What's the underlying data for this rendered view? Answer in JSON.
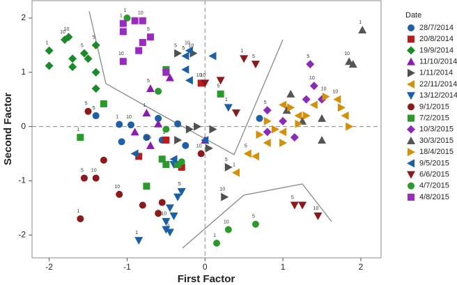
{
  "chart_data": {
    "type": "scatter",
    "x_label": "First Factor",
    "y_label": "Second Factor",
    "legend_title": "Date",
    "xlim": [
      -2.22,
      2.26
    ],
    "ylim": [
      -2.42,
      2.32
    ],
    "xticks": [
      -2,
      -1,
      0,
      1,
      2
    ],
    "yticks": [
      -2,
      -1,
      0,
      1,
      2
    ],
    "reference_lines": true,
    "legend_position": "right",
    "series": [
      {
        "name": "28/7/2014",
        "color": "#1f5fa8",
        "marker": "circle",
        "x": [
          -1.4,
          -1.1,
          -0.95,
          -1.07,
          -0.75,
          -0.55,
          -0.35,
          -0.25,
          0.7,
          -0.6
        ],
        "y": [
          0.2,
          0.04,
          0.03,
          -0.28,
          -0.2,
          -0.25,
          0.05,
          -0.35,
          0.15,
          0.15
        ],
        "labels": [
          "5",
          "1",
          "10",
          null,
          null,
          null,
          null,
          null,
          null,
          null
        ]
      },
      {
        "name": "20/8/2014",
        "color": "#b81c1c",
        "marker": "square",
        "x": [
          -0.5,
          -0.3,
          -0.05,
          -0.85
        ],
        "y": [
          -0.25,
          -0.75,
          0.8,
          -0.55
        ],
        "labels": [
          "1",
          null,
          "10",
          null
        ]
      },
      {
        "name": "19/9/2014",
        "color": "#1a8a2a",
        "marker": "diamond",
        "x": [
          -2.0,
          -2.0,
          -1.8,
          -1.75,
          -1.7,
          -1.7,
          -1.55,
          -1.5,
          -1.4,
          -1.4,
          -1.4
        ],
        "y": [
          1.4,
          1.12,
          1.6,
          1.65,
          1.25,
          1.1,
          1.35,
          1.25,
          1.5,
          1.0,
          0.7
        ],
        "labels": [
          "1",
          null,
          "10",
          "10",
          null,
          null,
          "5",
          null,
          "5",
          null,
          null
        ]
      },
      {
        "name": "11/10/2014",
        "color": "#8b1ab0",
        "marker": "tri-up",
        "x": [
          -0.7,
          -0.75,
          -0.6,
          -0.7,
          0.0,
          -0.9,
          -0.45
        ],
        "y": [
          0.7,
          0.25,
          0.05,
          -0.35,
          -0.25,
          -0.1,
          0.9
        ],
        "labels": [
          "5",
          "1",
          null,
          "10",
          null,
          null,
          null
        ]
      },
      {
        "name": "1/11/2014",
        "color": "#505050",
        "marker": "tri-right",
        "x": [
          -0.35,
          -0.15,
          -0.1,
          -0.35,
          0.05,
          0.3,
          0.25,
          -0.2,
          0.1
        ],
        "y": [
          1.35,
          1.35,
          0.0,
          -0.25,
          -0.4,
          -0.75,
          -1.3,
          -0.05,
          -0.05
        ],
        "labels": [
          "5",
          "10",
          null,
          null,
          "1",
          "5",
          "10",
          null,
          null
        ]
      },
      {
        "name": "22/11/2014",
        "color": "#d4900a",
        "marker": "tri-left",
        "x": [
          0.4,
          0.65,
          0.8,
          1.0,
          1.2,
          1.4,
          1.7,
          1.8,
          1.0,
          0.55
        ],
        "y": [
          -0.85,
          -0.55,
          -0.3,
          -0.1,
          0.2,
          0.4,
          0.5,
          0.2,
          0.4,
          -0.5
        ],
        "labels": [
          "1",
          null,
          null,
          null,
          null,
          null,
          "10",
          null,
          null,
          "5"
        ]
      },
      {
        "name": "13/12/2014",
        "color": "#1a5fa8",
        "marker": "tri-down",
        "x": [
          -0.85,
          -0.45,
          -0.5,
          -0.45,
          -0.35,
          -0.3,
          -0.4,
          -0.5,
          0.3,
          -0.4
        ],
        "y": [
          -2.1,
          -1.95,
          -1.75,
          -1.5,
          -1.3,
          -1.2,
          -1.65,
          -1.9,
          0.35,
          -0.7
        ],
        "labels": [
          "1",
          "5",
          "10",
          null,
          null,
          "5",
          null,
          null,
          "1",
          null
        ]
      },
      {
        "name": "9/1/2015",
        "color": "#8b1a1a",
        "marker": "circle",
        "x": [
          -1.6,
          -1.55,
          -1.4,
          -1.3,
          -1.1,
          -0.8,
          -0.55,
          -0.6,
          -1.5,
          -0.05
        ],
        "y": [
          -1.7,
          -0.95,
          -0.95,
          -0.62,
          -1.25,
          -1.45,
          -1.4,
          -1.6,
          0.28,
          -0.5
        ],
        "labels": [
          "1",
          "5",
          "10",
          null,
          "10",
          null,
          null,
          null,
          "5",
          "10"
        ]
      },
      {
        "name": "7/2/2015",
        "color": "#2a9a2a",
        "marker": "square",
        "x": [
          -1.6,
          -1.3,
          0.2,
          -0.5,
          -0.35,
          -0.5,
          -0.75,
          -0.55
        ],
        "y": [
          -0.2,
          0.42,
          0.6,
          1.05,
          -0.7,
          -0.7,
          -1.1,
          -0.6
        ],
        "labels": [
          "1",
          null,
          "5",
          null,
          null,
          null,
          null,
          null
        ]
      },
      {
        "name": "10/3/2015",
        "color": "#8a2ab8",
        "marker": "diamond",
        "x": [
          0.8,
          1.0,
          1.15,
          1.3,
          1.4,
          1.35,
          1.5,
          0.8
        ],
        "y": [
          0.3,
          0.1,
          -0.2,
          0.5,
          0.75,
          1.15,
          0.5,
          -0.1
        ],
        "labels": [
          "5",
          null,
          null,
          null,
          "10",
          "5",
          null,
          null
        ]
      },
      {
        "name": "30/3/2015",
        "color": "#555555",
        "marker": "tri-up",
        "x": [
          1.05,
          1.25,
          1.5,
          1.85,
          1.9,
          2.02,
          1.5,
          1.1
        ],
        "y": [
          0.3,
          0.1,
          0.15,
          1.2,
          1.15,
          1.78,
          -0.25,
          0.6
        ],
        "labels": [
          null,
          null,
          null,
          "10",
          null,
          "1",
          null,
          null
        ]
      },
      {
        "name": "18/4/2015",
        "color": "#d4900a",
        "marker": "tri-right",
        "x": [
          0.8,
          0.9,
          1.1,
          1.3,
          1.55,
          1.75,
          1.85,
          0.7,
          1.0,
          1.2
        ],
        "y": [
          0.1,
          -0.05,
          0.35,
          0.2,
          0.55,
          0.35,
          0.0,
          -0.15,
          -0.3,
          0.05
        ],
        "labels": [
          null,
          null,
          null,
          null,
          "10",
          null,
          null,
          null,
          null,
          null
        ]
      },
      {
        "name": "9/5/2015",
        "color": "#1a5fa8",
        "marker": "tri-left",
        "x": [
          -0.25,
          -0.25,
          -0.2,
          0.1,
          -0.2,
          0.0,
          -0.4,
          -0.9
        ],
        "y": [
          1.3,
          1.05,
          1.4,
          1.3,
          0.85,
          -0.25,
          -0.6,
          -0.5
        ],
        "labels": [
          "5",
          null,
          "10",
          null,
          null,
          null,
          null,
          null
        ]
      },
      {
        "name": "6/6/2015",
        "color": "#8b1a1a",
        "marker": "tri-down",
        "x": [
          0.5,
          0.65,
          0.4,
          0.2,
          1.15,
          1.25,
          1.45,
          0.0
        ],
        "y": [
          1.25,
          1.15,
          0.25,
          0.85,
          -1.45,
          -1.45,
          -1.65,
          0.8
        ],
        "labels": [
          "1",
          "5",
          null,
          null,
          "5",
          null,
          "10",
          "10"
        ]
      },
      {
        "name": "4/7/2015",
        "color": "#2a9a2a",
        "marker": "circle",
        "x": [
          0.15,
          0.3,
          0.65,
          -1.0,
          -0.6,
          -0.5,
          -0.3
        ],
        "y": [
          -2.15,
          -1.9,
          -1.8,
          2.0,
          0.65,
          -0.05,
          -0.65
        ],
        "labels": [
          "1",
          "10",
          "5",
          "1",
          null,
          null,
          null
        ]
      },
      {
        "name": "4/8/2015",
        "color": "#9a2ac0",
        "marker": "square",
        "x": [
          -1.05,
          -0.9,
          -0.8,
          -0.8,
          -0.85,
          -0.7,
          -1.05,
          -0.5,
          -1.05
        ],
        "y": [
          1.9,
          1.95,
          1.95,
          1.55,
          1.4,
          1.65,
          1.2,
          1.0,
          1.75
        ],
        "labels": [
          "1",
          null,
          "10",
          null,
          null,
          "5",
          "10",
          null,
          null
        ]
      }
    ]
  }
}
